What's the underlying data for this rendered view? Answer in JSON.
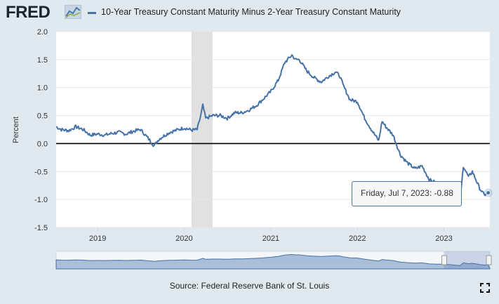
{
  "header": {
    "logo_text": "FRED",
    "series_title": "10-Year Treasury Constant Maturity Minus 2-Year Treasury Constant Maturity"
  },
  "colors": {
    "series": "#4572a7",
    "recession": "#e1e1e1",
    "navigator": "#6a8fc0",
    "zero_line": "#000000"
  },
  "tooltip": {
    "date": "Friday, Jul 7, 2023:",
    "value": "-0.88"
  },
  "source": "Source: Federal Reserve Bank of St. Louis",
  "icons": {
    "logo": "chart-line-icon",
    "fullscreen": "expand-icon"
  },
  "chart_data": {
    "type": "line",
    "title": "",
    "xlabel": "",
    "ylabel": "Percent",
    "ylim": [
      -1.5,
      2.0
    ],
    "xlim": [
      "2018-07-10",
      "2023-07-14"
    ],
    "yticks": [
      "-1.5",
      "-1.0",
      "-0.5",
      "0.0",
      "0.5",
      "1.0",
      "1.5",
      "2.0"
    ],
    "xticks": [
      "2019",
      "2020",
      "2021",
      "2022",
      "2023"
    ],
    "grid": "horizontal",
    "recessions": [
      [
        "2020-02-01",
        "2020-04-30"
      ]
    ],
    "series": [
      {
        "x": [
          "2018-07-10",
          "2018-08-01",
          "2018-09-01",
          "2018-10-01",
          "2018-11-01",
          "2018-12-01",
          "2019-01-01",
          "2019-02-01",
          "2019-03-01",
          "2019-04-01",
          "2019-05-01",
          "2019-06-01",
          "2019-07-01",
          "2019-08-01",
          "2019-08-27",
          "2019-09-15",
          "2019-10-01",
          "2019-11-01",
          "2019-12-01",
          "2020-01-01",
          "2020-02-01",
          "2020-02-25",
          "2020-03-09",
          "2020-03-20",
          "2020-04-01",
          "2020-05-01",
          "2020-06-01",
          "2020-07-01",
          "2020-08-01",
          "2020-09-01",
          "2020-10-01",
          "2020-11-01",
          "2020-12-01",
          "2021-01-01",
          "2021-02-01",
          "2021-03-01",
          "2021-03-31",
          "2021-04-15",
          "2021-05-01",
          "2021-06-01",
          "2021-07-01",
          "2021-08-01",
          "2021-09-01",
          "2021-10-01",
          "2021-10-20",
          "2021-11-01",
          "2021-12-01",
          "2022-01-01",
          "2022-02-01",
          "2022-03-01",
          "2022-04-01",
          "2022-04-15",
          "2022-05-01",
          "2022-06-01",
          "2022-07-01",
          "2022-08-01",
          "2022-09-01",
          "2022-10-01",
          "2022-11-01",
          "2022-12-01",
          "2023-01-01",
          "2023-02-01",
          "2023-03-01",
          "2023-03-10",
          "2023-03-24",
          "2023-04-15",
          "2023-05-01",
          "2023-06-01",
          "2023-06-20",
          "2023-07-07"
        ],
        "y": [
          0.3,
          0.25,
          0.23,
          0.3,
          0.25,
          0.15,
          0.17,
          0.15,
          0.18,
          0.2,
          0.17,
          0.22,
          0.25,
          0.1,
          -0.04,
          0.07,
          0.12,
          0.2,
          0.24,
          0.28,
          0.24,
          0.25,
          0.46,
          0.68,
          0.45,
          0.5,
          0.5,
          0.45,
          0.55,
          0.55,
          0.6,
          0.68,
          0.8,
          0.93,
          1.13,
          1.45,
          1.58,
          1.5,
          1.5,
          1.3,
          1.18,
          1.1,
          1.2,
          1.28,
          1.2,
          1.05,
          0.78,
          0.75,
          0.45,
          0.25,
          0.05,
          0.4,
          0.3,
          0.15,
          -0.2,
          -0.35,
          -0.45,
          -0.4,
          -0.65,
          -0.7,
          -0.72,
          -0.85,
          -1.0,
          -1.05,
          -0.4,
          -0.6,
          -0.5,
          -0.8,
          -0.92,
          -0.88
        ]
      }
    ],
    "tooltip_point": {
      "x": "2023-07-07",
      "y": -0.88
    }
  }
}
